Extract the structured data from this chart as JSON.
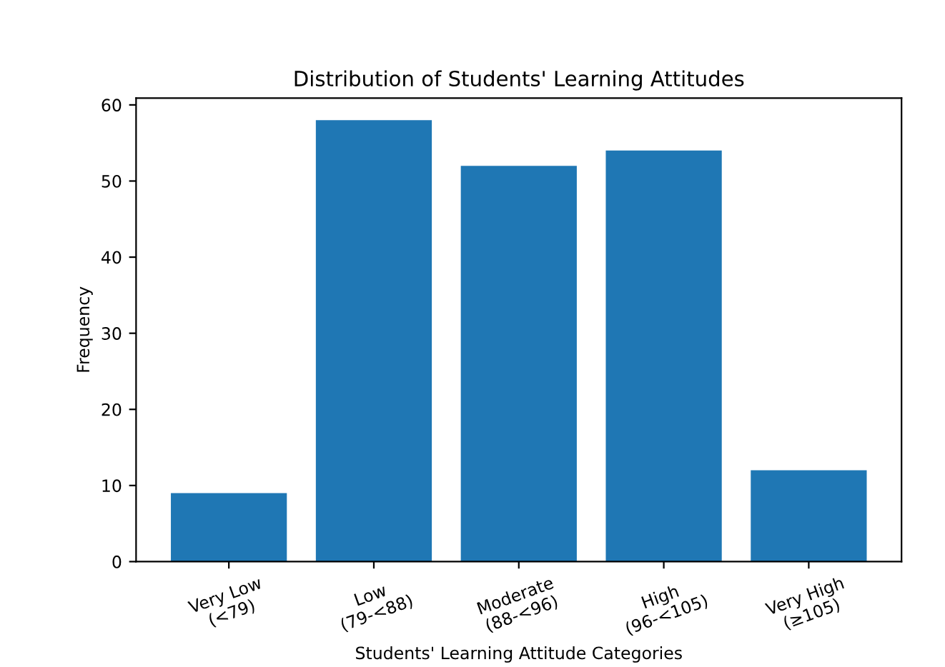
{
  "chart_data": {
    "type": "bar",
    "title": "Distribution of Students' Learning Attitudes",
    "xlabel": "Students' Learning Attitude Categories",
    "ylabel": "Frequency",
    "categories": [
      "Very Low\n(<79)",
      "Low\n(79-<88)",
      "Moderate\n(88-<96)",
      "High\n(96-<105)",
      "Very High\n(≥105)"
    ],
    "values": [
      9,
      58,
      52,
      54,
      12
    ],
    "color": "#1f77b4",
    "ylim": [
      0,
      60.9
    ],
    "yticks": [
      0,
      10,
      20,
      30,
      40,
      50,
      60
    ],
    "grid": false
  }
}
